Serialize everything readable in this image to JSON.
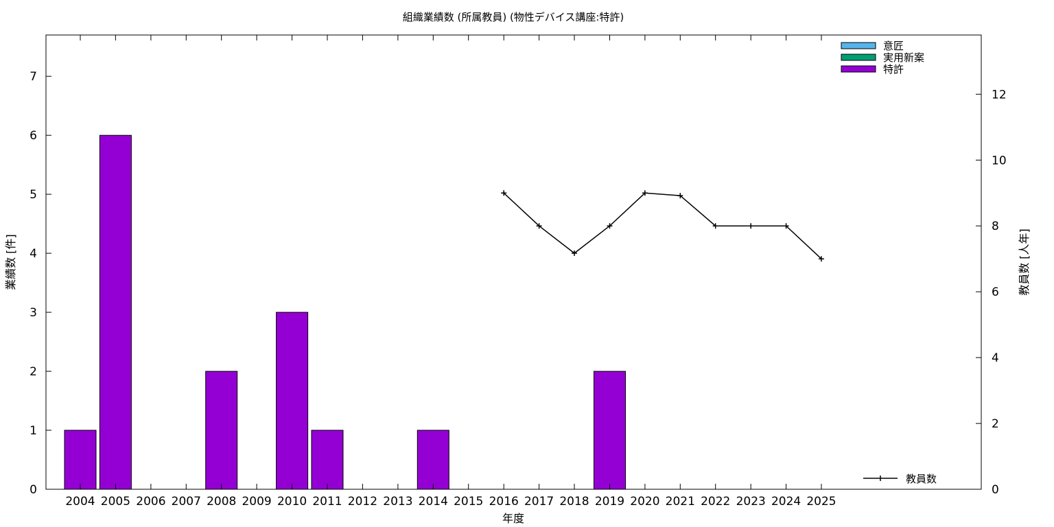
{
  "chart_data": {
    "type": "bar",
    "title": "組織業績数 (所属教員) (物性デバイス講座:特許)",
    "xlabel": "年度",
    "ylabel": "業績数 [件]",
    "y2label": "教員数 [人年]",
    "categories": [
      "2004",
      "2005",
      "2006",
      "2007",
      "2008",
      "2009",
      "2010",
      "2011",
      "2012",
      "2013",
      "2014",
      "2015",
      "2016",
      "2017",
      "2018",
      "2019",
      "2020",
      "2021",
      "2022",
      "2023",
      "2024",
      "2025"
    ],
    "ylim": [
      0,
      7.7
    ],
    "y2lim": [
      0,
      13.8
    ],
    "yticks": [
      0,
      1,
      2,
      3,
      4,
      5,
      6,
      7
    ],
    "y2ticks": [
      0,
      2,
      4,
      6,
      8,
      10,
      12
    ],
    "grid": false,
    "legend": "top-right",
    "series": [
      {
        "name": "意匠",
        "kind": "bar",
        "color": "#56b4e9",
        "values": [
          0,
          0,
          0,
          0,
          0,
          0,
          0,
          0,
          0,
          0,
          0,
          0,
          0,
          0,
          0,
          0,
          0,
          0,
          0,
          0,
          0,
          0
        ]
      },
      {
        "name": "実用新案",
        "kind": "bar",
        "color": "#009e73",
        "values": [
          0,
          0,
          0,
          0,
          0,
          0,
          0,
          0,
          0,
          0,
          0,
          0,
          0,
          0,
          0,
          0,
          0,
          0,
          0,
          0,
          0,
          0
        ]
      },
      {
        "name": "特許",
        "kind": "bar",
        "color": "#9400d3",
        "values": [
          1,
          6,
          0,
          0,
          2,
          0,
          3,
          1,
          0,
          0,
          1,
          0,
          0,
          0,
          0,
          2,
          0,
          0,
          0,
          0,
          0,
          0
        ]
      },
      {
        "name": "教員数",
        "kind": "line",
        "axis": "y2",
        "color": "#000000",
        "values": [
          null,
          null,
          null,
          null,
          null,
          null,
          null,
          null,
          null,
          null,
          null,
          null,
          9,
          8,
          7.17,
          8,
          9,
          8.92,
          8,
          8,
          8,
          7
        ]
      }
    ]
  }
}
